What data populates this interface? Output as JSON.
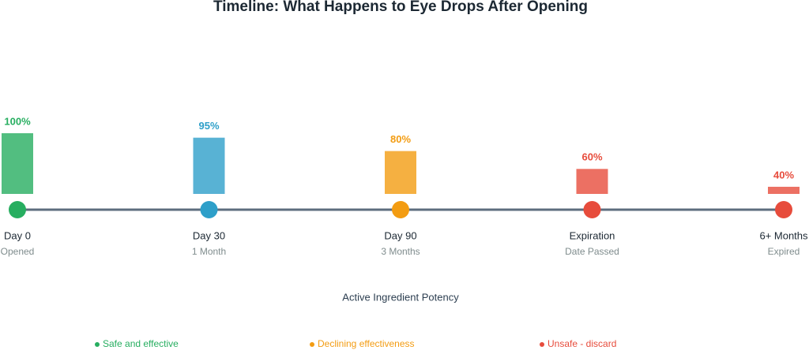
{
  "chart_data": {
    "type": "timeline",
    "title": "Timeline: What Happens to Eye Drops After Opening",
    "categories": [
      "Day 0",
      "Day 30",
      "Day 90",
      "Expiration",
      "6+ Months"
    ],
    "subtitles": [
      "Opened",
      "1 Month",
      "3 Months",
      "Date Passed",
      "Expired"
    ],
    "values": [
      100,
      95,
      80,
      60,
      40
    ],
    "value_labels": [
      "100%",
      "95%",
      "80%",
      "60%",
      "40%"
    ],
    "colors": [
      "#27ae60",
      "#2e9fc9",
      "#f39c12",
      "#e74c3c",
      "#e74c3c"
    ],
    "x_label": "Active Ingredient Potency",
    "legend": [
      {
        "name": "Safe and effective",
        "color": "#27ae60"
      },
      {
        "name": "Declining effectiveness",
        "color": "#f39c12"
      },
      {
        "name": "Unsafe - discard",
        "color": "#e74c3c"
      }
    ]
  }
}
